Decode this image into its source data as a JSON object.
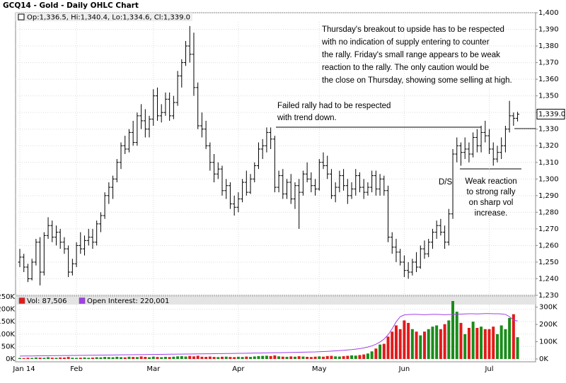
{
  "chart_data": [
    {
      "type": "ohlc",
      "title": "GCQ14 - Gold - Daily OHLC Chart",
      "legend": "Op:1,336.5, Hi:1,340.4, Lo:1,334.6, Cl:1,339.0",
      "color": "#000000",
      "categories": [
        "Jan 14",
        null,
        null,
        null,
        null,
        null,
        null,
        null,
        null,
        null,
        null,
        null,
        null,
        null,
        "Feb",
        null,
        null,
        null,
        null,
        null,
        null,
        null,
        null,
        null,
        null,
        null,
        null,
        null,
        null,
        null,
        null,
        null,
        null,
        "Mar",
        null,
        null,
        null,
        null,
        null,
        null,
        null,
        null,
        null,
        null,
        null,
        null,
        null,
        null,
        null,
        null,
        null,
        null,
        null,
        null,
        "Apr",
        null,
        null,
        null,
        null,
        null,
        null,
        null,
        null,
        null,
        null,
        null,
        null,
        null,
        null,
        null,
        null,
        null,
        null,
        null,
        "May",
        null,
        null,
        null,
        null,
        null,
        null,
        null,
        null,
        null,
        null,
        null,
        null,
        null,
        null,
        null,
        null,
        null,
        null,
        null,
        null,
        "Jun",
        null,
        null,
        null,
        null,
        null,
        null,
        null,
        null,
        null,
        null,
        null,
        null,
        null,
        null,
        null,
        null,
        null,
        null,
        null,
        null,
        "Jul",
        null,
        null,
        null,
        null,
        null,
        null,
        null
      ],
      "open": [
        1250,
        1253,
        1247,
        1240,
        1250,
        1262,
        1244,
        1266,
        1272,
        1265,
        1268,
        1262,
        1258,
        1244,
        1249,
        1260,
        1258,
        1263,
        1265,
        1262,
        1273,
        1278,
        1290,
        1295,
        1300,
        1310,
        1320,
        1318,
        1328,
        1322,
        1338,
        1335,
        1330,
        1336,
        1350,
        1338,
        1340,
        1348,
        1338,
        1346,
        1362,
        1370,
        1380,
        1375,
        1355,
        1332,
        1330,
        1320,
        1310,
        1303,
        1306,
        1293,
        1296,
        1285,
        1283,
        1288,
        1298,
        1292,
        1300,
        1308,
        1318,
        1320,
        1328,
        1324,
        1295,
        1302,
        1291,
        1298,
        1288,
        1296,
        1292,
        1303,
        1300,
        1296,
        1294,
        1310,
        1308,
        1303,
        1290,
        1295,
        1302,
        1296,
        1290,
        1294,
        1302,
        1295,
        1292,
        1295,
        1302,
        1294,
        1300,
        1293,
        1265,
        1259,
        1256,
        1250,
        1245,
        1244,
        1250,
        1247,
        1258,
        1255,
        1262,
        1268,
        1272,
        1268,
        1262,
        1279,
        1315,
        1320,
        1316,
        1318,
        1315,
        1325,
        1320,
        1328,
        1326,
        1318,
        1312,
        1316,
        1320,
        1330,
        1338,
        1336.5
      ],
      "high": [
        1258,
        1255,
        1249,
        1252,
        1264,
        1265,
        1268,
        1277,
        1275,
        1272,
        1270,
        1265,
        1260,
        1252,
        1262,
        1268,
        1266,
        1270,
        1270,
        1275,
        1280,
        1292,
        1298,
        1302,
        1312,
        1322,
        1326,
        1330,
        1335,
        1340,
        1345,
        1342,
        1338,
        1354,
        1355,
        1345,
        1352,
        1352,
        1350,
        1365,
        1372,
        1383,
        1392,
        1388,
        1358,
        1340,
        1335,
        1322,
        1315,
        1310,
        1308,
        1300,
        1298,
        1290,
        1292,
        1300,
        1305,
        1303,
        1310,
        1322,
        1324,
        1331,
        1331,
        1326,
        1305,
        1306,
        1300,
        1303,
        1298,
        1300,
        1305,
        1310,
        1304,
        1300,
        1312,
        1316,
        1314,
        1306,
        1298,
        1305,
        1306,
        1300,
        1298,
        1306,
        1304,
        1300,
        1298,
        1305,
        1305,
        1303,
        1302,
        1296,
        1268,
        1264,
        1258,
        1254,
        1250,
        1252,
        1256,
        1260,
        1263,
        1264,
        1270,
        1275,
        1276,
        1272,
        1282,
        1318,
        1325,
        1322,
        1325,
        1322,
        1328,
        1330,
        1332,
        1335,
        1330,
        1322,
        1320,
        1325,
        1332,
        1347,
        1340,
        1340.4
      ],
      "low": [
        1247,
        1244,
        1238,
        1239,
        1248,
        1236,
        1242,
        1264,
        1262,
        1260,
        1258,
        1255,
        1241,
        1242,
        1247,
        1255,
        1254,
        1260,
        1258,
        1260,
        1268,
        1276,
        1285,
        1288,
        1298,
        1306,
        1315,
        1316,
        1320,
        1320,
        1330,
        1325,
        1325,
        1332,
        1335,
        1334,
        1338,
        1335,
        1336,
        1344,
        1355,
        1368,
        1370,
        1350,
        1330,
        1325,
        1318,
        1305,
        1298,
        1300,
        1290,
        1288,
        1282,
        1278,
        1280,
        1286,
        1290,
        1291,
        1298,
        1306,
        1312,
        1316,
        1318,
        1292,
        1292,
        1288,
        1288,
        1285,
        1282,
        1270,
        1290,
        1298,
        1292,
        1290,
        1293,
        1306,
        1300,
        1288,
        1286,
        1292,
        1293,
        1285,
        1288,
        1290,
        1292,
        1288,
        1290,
        1292,
        1290,
        1290,
        1290,
        1262,
        1255,
        1250,
        1248,
        1241,
        1240,
        1242,
        1244,
        1246,
        1252,
        1253,
        1258,
        1264,
        1266,
        1258,
        1260,
        1276,
        1310,
        1308,
        1312,
        1310,
        1313,
        1316,
        1316,
        1322,
        1315,
        1308,
        1310,
        1312,
        1316,
        1328,
        1332,
        1334.6
      ],
      "close": [
        1253,
        1247,
        1240,
        1250,
        1262,
        1244,
        1266,
        1272,
        1265,
        1268,
        1262,
        1258,
        1244,
        1249,
        1260,
        1258,
        1263,
        1265,
        1262,
        1273,
        1278,
        1290,
        1295,
        1300,
        1310,
        1320,
        1318,
        1328,
        1322,
        1338,
        1335,
        1330,
        1336,
        1350,
        1338,
        1340,
        1348,
        1338,
        1346,
        1362,
        1370,
        1380,
        1375,
        1355,
        1332,
        1330,
        1320,
        1310,
        1303,
        1306,
        1293,
        1296,
        1285,
        1283,
        1288,
        1298,
        1292,
        1300,
        1308,
        1318,
        1320,
        1328,
        1324,
        1295,
        1302,
        1291,
        1298,
        1288,
        1296,
        1292,
        1303,
        1300,
        1296,
        1294,
        1310,
        1308,
        1303,
        1290,
        1295,
        1302,
        1296,
        1290,
        1294,
        1302,
        1295,
        1292,
        1295,
        1302,
        1294,
        1300,
        1293,
        1265,
        1259,
        1256,
        1250,
        1245,
        1244,
        1250,
        1247,
        1258,
        1255,
        1262,
        1268,
        1272,
        1268,
        1262,
        1279,
        1315,
        1320,
        1316,
        1318,
        1315,
        1325,
        1320,
        1328,
        1326,
        1318,
        1312,
        1316,
        1320,
        1330,
        1338,
        1336.5,
        1339
      ],
      "ylim": [
        1230,
        1400
      ],
      "yticks": [
        {
          "value": 1230,
          "label": "1,230"
        },
        {
          "value": 1240,
          "label": "1,240"
        },
        {
          "value": 1250,
          "label": "1,250"
        },
        {
          "value": 1260,
          "label": "1,260"
        },
        {
          "value": 1270,
          "label": "1,270"
        },
        {
          "value": 1280,
          "label": "1,280"
        },
        {
          "value": 1290,
          "label": "1,290"
        },
        {
          "value": 1300,
          "label": "1,300"
        },
        {
          "value": 1310,
          "label": "1,310"
        },
        {
          "value": 1320,
          "label": "1,320"
        },
        {
          "value": 1330,
          "label": "1,330"
        },
        {
          "value": 1340,
          "label": "1,340"
        },
        {
          "value": 1350,
          "label": "1,350"
        },
        {
          "value": 1360,
          "label": "1,360"
        },
        {
          "value": 1370,
          "label": "1,370"
        },
        {
          "value": 1380,
          "label": "1,380"
        },
        {
          "value": 1390,
          "label": "1,390"
        },
        {
          "value": 1400,
          "label": "1,400"
        }
      ],
      "grid": true,
      "last_price": {
        "value": 1339,
        "label": "1,339.0"
      },
      "annotations": [
        {
          "lines": [
            "Thursday's breakout to upside has to be respected",
            "with no indication of supply entering to counter",
            "the rally. Friday's small range appears to be weak",
            "reaction to the rally.  The only caution would be",
            "the close on Thursday, showing some selling at high."
          ]
        },
        {
          "lines": [
            "Failed rally had to be respected",
            "with trend down."
          ]
        },
        {
          "lines": [
            "D/S"
          ]
        },
        {
          "lines": [
            "Weak reaction",
            "to strong rally",
            "on sharp vol",
            "increase."
          ]
        }
      ]
    },
    {
      "type": "bar",
      "series": [
        {
          "name": "Vol: 87,506",
          "color": "#e31a1a",
          "up_color": "#1a8c1a",
          "values": [
            4000,
            3500,
            5000,
            4200,
            6000,
            5500,
            4800,
            7000,
            5200,
            4600,
            6100,
            5800,
            8000,
            5000,
            4500,
            5200,
            6000,
            4800,
            5500,
            7000,
            6400,
            8200,
            7500,
            6900,
            8800,
            7200,
            6500,
            9000,
            8100,
            7700,
            10200,
            8400,
            7000,
            9500,
            8000,
            7200,
            8600,
            7800,
            9100,
            10500,
            11200,
            9800,
            12000,
            10400,
            13100,
            9000,
            8500,
            9700,
            8200,
            7600,
            8900,
            9300,
            8100,
            7400,
            8800,
            7900,
            9600,
            8300,
            10100,
            11500,
            12300,
            13000,
            11800,
            14200,
            10600,
            9400,
            8700,
            10200,
            9100,
            11000,
            9800,
            8600,
            7900,
            9300,
            10500,
            9200,
            11800,
            12600,
            10400,
            9800,
            11200,
            12800,
            14500,
            13600,
            15800,
            18200,
            22000,
            30500,
            42000,
            58000,
            61000,
            90000,
            110000,
            135000,
            120000,
            155000,
            145000,
            120000,
            110000,
            95000,
            110000,
            120000,
            130000,
            135000,
            120000,
            140000,
            155000,
            233000,
            190000,
            145000,
            100000,
            125000,
            150000,
            125000,
            130000,
            120000,
            120000,
            130000,
            100000,
            135000,
            120000,
            165000,
            180000,
            87506
          ]
        },
        {
          "name": "Open Interest: 220,001",
          "type": "line",
          "axis": "y2",
          "color": "#a040e8",
          "values": [
            17000,
            17200,
            17500,
            17600,
            18000,
            18200,
            18500,
            18700,
            19000,
            19200,
            19500,
            19800,
            20100,
            20300,
            20600,
            20900,
            21200,
            21500,
            21800,
            22000,
            22300,
            22600,
            22900,
            23200,
            23500,
            23800,
            24100,
            24400,
            24700,
            25000,
            25300,
            25600,
            25900,
            26200,
            26500,
            26800,
            27100,
            27400,
            27700,
            28000,
            28300,
            28600,
            28900,
            29200,
            29500,
            29800,
            30100,
            30400,
            30700,
            31000,
            31300,
            31600,
            31900,
            32200,
            32500,
            32900,
            33300,
            33700,
            34100,
            34500,
            34900,
            35300,
            35700,
            36100,
            36500,
            37000,
            37500,
            38000,
            38500,
            39000,
            39500,
            40000,
            40500,
            41000,
            42000,
            43000,
            44000,
            45500,
            47000,
            48500,
            50000,
            52000,
            54000,
            57000,
            60000,
            64000,
            69000,
            76000,
            85000,
            98000,
            115000,
            140000,
            175000,
            215000,
            245000,
            255000,
            257000,
            258000,
            258000,
            257000,
            256000,
            257000,
            258000,
            258000,
            257000,
            256000,
            257000,
            258000,
            259000,
            260000,
            261000,
            262000,
            262000,
            261000,
            262000,
            263000,
            263000,
            262000,
            262000,
            261000,
            258000,
            245000,
            225000,
            220001
          ]
        }
      ],
      "ylim": [
        0,
        250000
      ],
      "yticks": [
        {
          "value": 0,
          "label": "0K"
        },
        {
          "value": 50000,
          "label": "50K"
        },
        {
          "value": 100000,
          "label": "100K"
        },
        {
          "value": 150000,
          "label": "150K"
        },
        {
          "value": 200000,
          "label": "200K"
        },
        {
          "value": 250000,
          "label": "250K"
        }
      ],
      "y2lim": [
        0,
        360000
      ],
      "y2ticks": [
        {
          "value": 0,
          "label": "0K"
        },
        {
          "value": 100000,
          "label": "100K"
        },
        {
          "value": 200000,
          "label": "200K"
        },
        {
          "value": 300000,
          "label": "300K"
        }
      ],
      "grid": true
    }
  ]
}
